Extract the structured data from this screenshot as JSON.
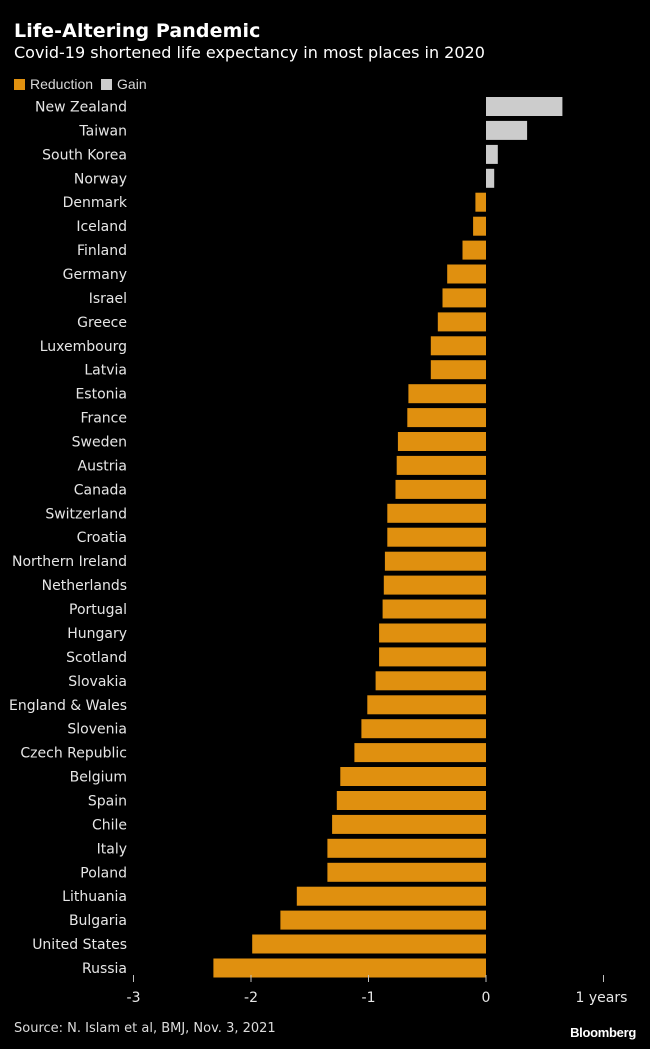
{
  "header": {
    "title": "Life-Altering Pandemic",
    "subtitle": "Covid-19 shortened life expectancy in most places in 2020"
  },
  "legend": {
    "items": [
      {
        "label": "Reduction",
        "color": "#E0900F"
      },
      {
        "label": "Gain",
        "color": "#CCCCCC"
      }
    ]
  },
  "footer": {
    "source": "Source: N. Islam et al, BMJ, Nov. 3, 2021",
    "brand": "Bloomberg"
  },
  "chart_data": {
    "type": "bar",
    "orientation": "horizontal",
    "title": "Life-Altering Pandemic",
    "subtitle": "Covid-19 shortened life expectancy in most places in 2020",
    "categories": [
      "New Zealand",
      "Taiwan",
      "South Korea",
      "Norway",
      "Denmark",
      "Iceland",
      "Finland",
      "Germany",
      "Israel",
      "Greece",
      "Luxembourg",
      "Latvia",
      "Estonia",
      "France",
      "Sweden",
      "Austria",
      "Canada",
      "Switzerland",
      "Croatia",
      "Northern Ireland",
      "Netherlands",
      "Portugal",
      "Hungary",
      "Scotland",
      "Slovakia",
      "England & Wales",
      "Slovenia",
      "Czech Republic",
      "Belgium",
      "Spain",
      "Chile",
      "Italy",
      "Poland",
      "Lithuania",
      "Bulgaria",
      "United States",
      "Russia"
    ],
    "values": [
      0.65,
      0.35,
      0.1,
      0.07,
      -0.09,
      -0.11,
      -0.2,
      -0.33,
      -0.37,
      -0.41,
      -0.47,
      -0.47,
      -0.66,
      -0.67,
      -0.75,
      -0.76,
      -0.77,
      -0.84,
      -0.84,
      -0.86,
      -0.87,
      -0.88,
      -0.91,
      -0.91,
      -0.94,
      -1.01,
      -1.06,
      -1.12,
      -1.24,
      -1.27,
      -1.31,
      -1.35,
      -1.35,
      -1.61,
      -1.75,
      -1.99,
      -2.32
    ],
    "reduction_color": "#E0900F",
    "gain_color": "#CCCCCC",
    "x_ticks": [
      -3,
      -2,
      -1,
      0,
      1
    ],
    "x_tick_labels": [
      "-3",
      "-2",
      "-1",
      "0",
      "1 years"
    ],
    "xlim": [
      -3,
      1
    ],
    "grid": false,
    "legend_position": "top-left"
  }
}
